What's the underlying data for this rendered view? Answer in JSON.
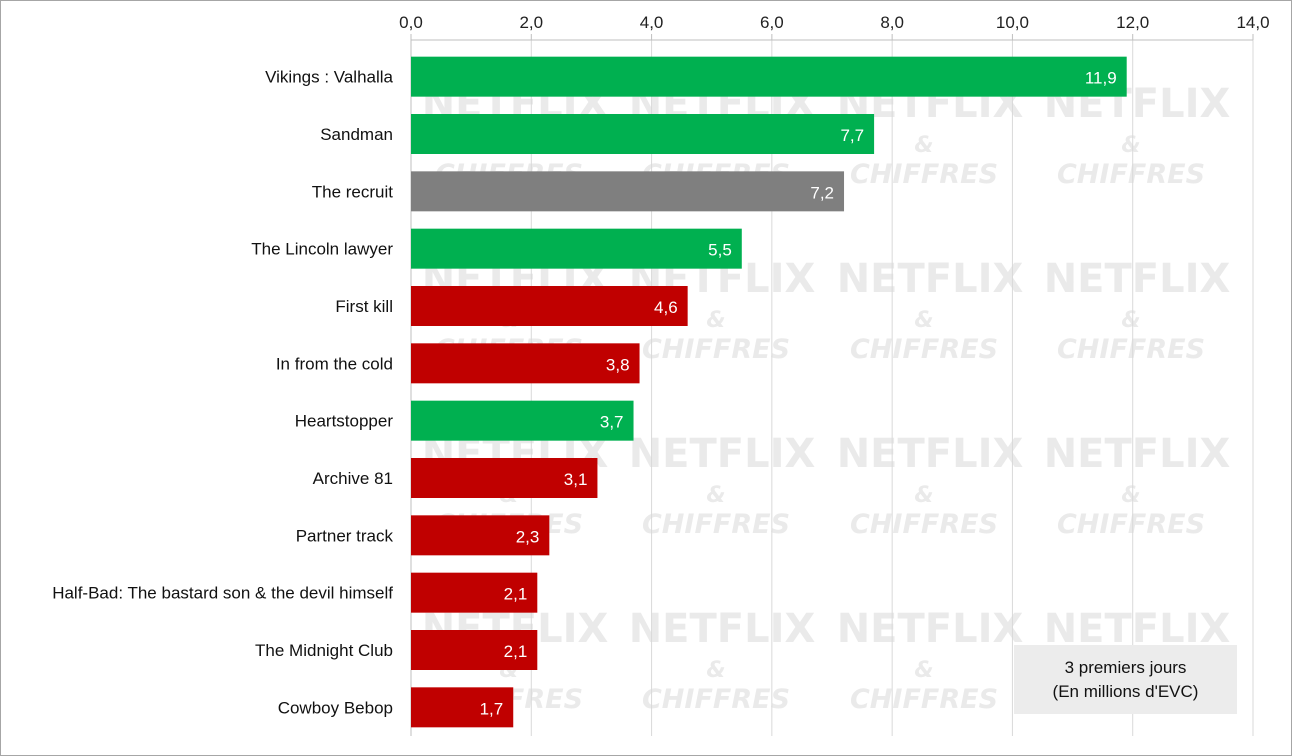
{
  "chart_data": {
    "type": "bar",
    "orientation": "horizontal",
    "categories": [
      "Vikings : Valhalla",
      "Sandman",
      "The recruit",
      "The Lincoln lawyer",
      "First kill",
      "In from the cold",
      "Heartstopper",
      "Archive 81",
      "Partner track",
      "Half-Bad: The bastard son & the devil himself",
      "The Midnight Club",
      "Cowboy Bebop"
    ],
    "values": [
      11.9,
      7.7,
      7.2,
      5.5,
      4.6,
      3.8,
      3.7,
      3.1,
      2.3,
      2.1,
      2.1,
      1.7
    ],
    "value_labels": [
      "11,9",
      "7,7",
      "7,2",
      "5,5",
      "4,6",
      "3,8",
      "3,7",
      "3,1",
      "2,3",
      "2,1",
      "2,1",
      "1,7"
    ],
    "bar_colors": [
      "#00b050",
      "#00b050",
      "#7f7f7f",
      "#00b050",
      "#c00000",
      "#c00000",
      "#00b050",
      "#c00000",
      "#c00000",
      "#c00000",
      "#c00000",
      "#c00000"
    ],
    "xlim": [
      0,
      14
    ],
    "x_ticks": [
      0,
      2,
      4,
      6,
      8,
      10,
      12,
      14
    ],
    "x_tick_labels": [
      "0,0",
      "2,0",
      "4,0",
      "6,0",
      "8,0",
      "10,0",
      "12,0",
      "14,0"
    ],
    "x_axis_position": "top",
    "grid": true,
    "annotation": {
      "line1": "3 premiers jours",
      "line2": "(En millions d'EVC)"
    }
  },
  "watermark": {
    "line1": "NETFLIX",
    "line2": "&",
    "line3": "CHIFFRES"
  }
}
